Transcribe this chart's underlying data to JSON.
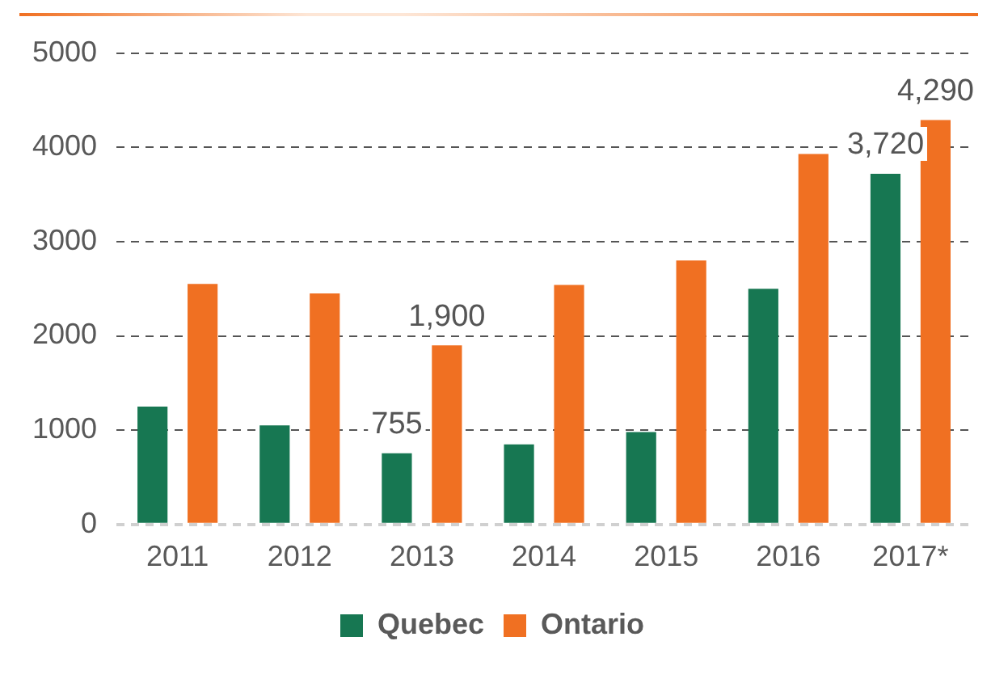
{
  "chart_data": {
    "type": "bar",
    "categories": [
      "2011",
      "2012",
      "2013",
      "2014",
      "2015",
      "2016",
      "2017*"
    ],
    "series": [
      {
        "name": "Quebec",
        "color": "#177752",
        "values": [
          1250,
          1050,
          755,
          850,
          980,
          2500,
          3720
        ],
        "value_labels": [
          null,
          null,
          "755",
          null,
          null,
          null,
          "3,720"
        ]
      },
      {
        "name": "Ontario",
        "color": "#f07022",
        "values": [
          2550,
          2450,
          1900,
          2540,
          2800,
          3930,
          4290
        ],
        "value_labels": [
          null,
          null,
          "1,900",
          null,
          null,
          null,
          "4,290"
        ]
      }
    ],
    "ylim": [
      0,
      5000
    ],
    "yticks": [
      0,
      1000,
      2000,
      3000,
      4000,
      5000
    ],
    "grid": "y",
    "legend": "bottom"
  }
}
